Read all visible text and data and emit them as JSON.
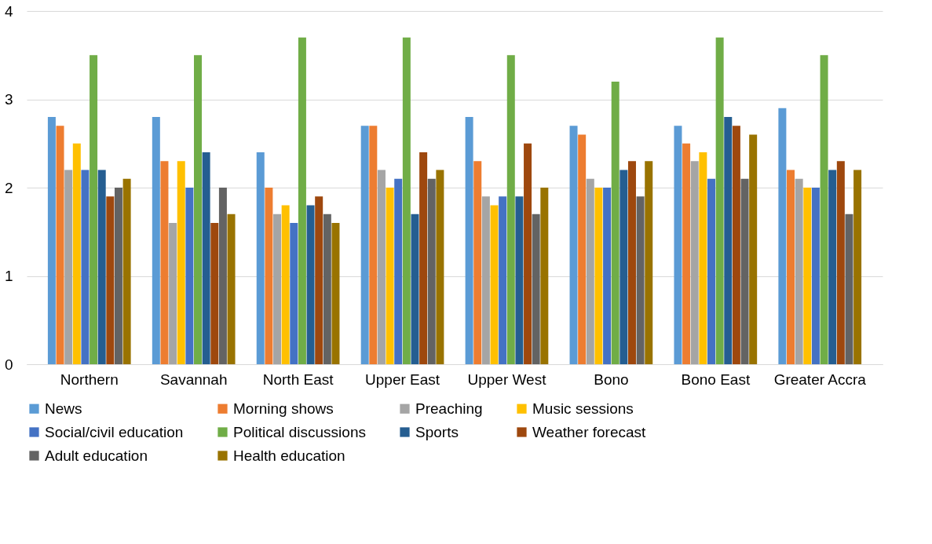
{
  "chart_data": {
    "type": "bar",
    "categories": [
      "Northern",
      "Savannah",
      "North East",
      "Upper East",
      "Upper West",
      "Bono",
      "Bono East",
      "Greater Accra"
    ],
    "series": [
      {
        "name": "News",
        "color": "#5b9bd5",
        "values": [
          2.8,
          2.8,
          2.4,
          2.7,
          2.8,
          2.7,
          2.7,
          2.9
        ]
      },
      {
        "name": "Morning shows",
        "color": "#ed7d31",
        "values": [
          2.7,
          2.3,
          2.0,
          2.7,
          2.3,
          2.6,
          2.5,
          2.2
        ]
      },
      {
        "name": "Preaching",
        "color": "#a5a5a5",
        "values": [
          2.2,
          1.6,
          1.7,
          2.2,
          1.9,
          2.1,
          2.3,
          2.1
        ]
      },
      {
        "name": "Music sessions",
        "color": "#ffc000",
        "values": [
          2.5,
          2.3,
          1.8,
          2.0,
          1.8,
          2.0,
          2.4,
          2.0
        ]
      },
      {
        "name": "Social/civil education",
        "color": "#4472c4",
        "values": [
          2.2,
          2.0,
          1.6,
          2.1,
          1.9,
          2.0,
          2.1,
          2.0
        ]
      },
      {
        "name": "Political discussions",
        "color": "#70ad47",
        "values": [
          3.5,
          3.5,
          3.7,
          3.7,
          3.5,
          3.2,
          3.7,
          3.5
        ]
      },
      {
        "name": "Sports",
        "color": "#255e91",
        "values": [
          2.2,
          2.4,
          1.8,
          1.7,
          1.9,
          2.2,
          2.8,
          2.2
        ]
      },
      {
        "name": "Weather forecast",
        "color": "#9e480e",
        "values": [
          1.9,
          1.6,
          1.9,
          2.4,
          2.5,
          2.3,
          2.7,
          2.3
        ]
      },
      {
        "name": "Adult education",
        "color": "#636363",
        "values": [
          2.0,
          2.0,
          1.7,
          2.1,
          1.7,
          1.9,
          2.1,
          1.7
        ]
      },
      {
        "name": "Health education",
        "color": "#997300",
        "values": [
          2.1,
          1.7,
          1.6,
          2.2,
          2.0,
          2.3,
          2.6,
          2.2
        ]
      }
    ],
    "ylim": [
      0,
      4
    ],
    "yticks": [
      0,
      1,
      2,
      3,
      4
    ],
    "grid": "y",
    "legend": "bottom"
  }
}
